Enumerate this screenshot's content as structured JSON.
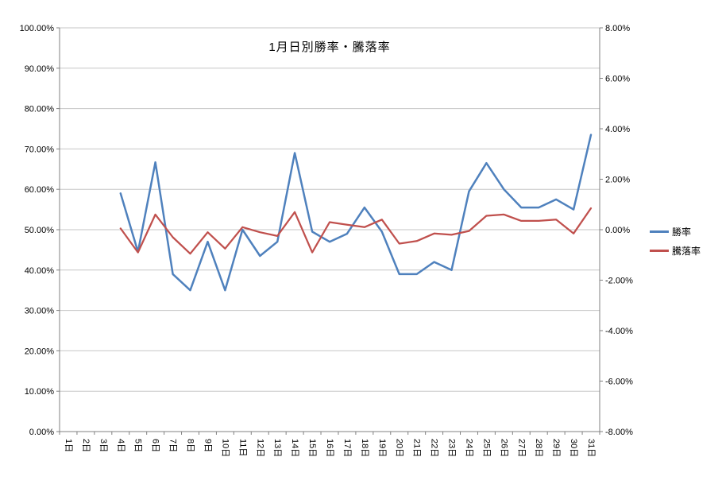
{
  "chart_data": {
    "type": "line",
    "title": "1月日別勝率・騰落率",
    "x_categories": [
      "1日",
      "2日",
      "3日",
      "4日",
      "5日",
      "6日",
      "7日",
      "8日",
      "9日",
      "10日",
      "11日",
      "12日",
      "13日",
      "14日",
      "15日",
      "16日",
      "17日",
      "18日",
      "19日",
      "20日",
      "21日",
      "22日",
      "23日",
      "24日",
      "25日",
      "26日",
      "27日",
      "28日",
      "29日",
      "30日",
      "31日"
    ],
    "left_axis": {
      "min": 0,
      "max": 100,
      "step": 10,
      "tick_suffix": "%",
      "decimals": 2
    },
    "right_axis": {
      "min": -8,
      "max": 8,
      "step": 2,
      "tick_suffix": "%",
      "decimals": 2
    },
    "grid": "horizontal",
    "legend_position": "right",
    "series": [
      {
        "name": "勝率",
        "axis": "left",
        "color": "#4f81bd",
        "stroke_width": 2.5,
        "values": [
          null,
          null,
          null,
          59,
          44.5,
          66.7,
          39,
          35,
          47,
          35,
          50,
          43.5,
          47,
          69,
          49.5,
          47,
          49,
          55.5,
          49.5,
          39,
          39,
          42,
          40,
          59.5,
          66.5,
          60,
          55.5,
          55.5,
          57.5,
          55,
          73.5
        ]
      },
      {
        "name": "騰落率",
        "axis": "right",
        "color": "#c0504d",
        "stroke_width": 2.25,
        "values": [
          null,
          null,
          null,
          0.05,
          -0.9,
          0.6,
          -0.3,
          -0.95,
          -0.1,
          -0.75,
          0.1,
          -0.1,
          -0.25,
          0.7,
          -0.9,
          0.3,
          0.2,
          0.1,
          0.4,
          -0.55,
          -0.45,
          -0.15,
          -0.2,
          -0.05,
          0.55,
          0.6,
          0.35,
          0.35,
          0.4,
          -0.15,
          0.85
        ]
      }
    ],
    "colors": {
      "gridline": "#c6c6c6",
      "axis_line": "#808080",
      "tick_text": "#000000"
    }
  }
}
